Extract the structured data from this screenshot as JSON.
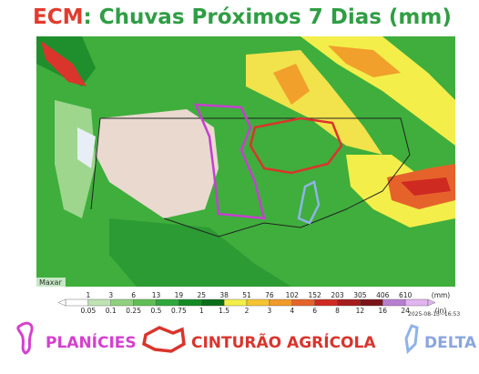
{
  "title": {
    "prefix": "ECM",
    "rest": ": Chuvas Próximos 7 Dias (mm)"
  },
  "map": {
    "credit": "Maxar",
    "timestamp": "2025-08-13~16:53"
  },
  "colorbar": {
    "colors": [
      "#ffffff",
      "#bfe3b5",
      "#8fd17f",
      "#5fbf55",
      "#2ea83a",
      "#138a24",
      "#0a6e1a",
      "#f4ee4a",
      "#f5c431",
      "#f09a2a",
      "#e5632a",
      "#cf2a22",
      "#a71d1d",
      "#7a1418",
      "#b77fd0",
      "#e2b4f0"
    ],
    "mm": [
      1,
      3,
      6,
      13,
      19,
      25,
      38,
      51,
      76,
      102,
      152,
      203,
      305,
      406,
      610
    ],
    "mm_unit": "(mm)",
    "inches": [
      0.05,
      0.1,
      0.25,
      0.5,
      0.75,
      1,
      1.5,
      2,
      3,
      4,
      6,
      8,
      12,
      16,
      24
    ],
    "in_unit": "(in)"
  },
  "legend": [
    "PLANÍCIES",
    "CINTURÃO AGRÍCOLA",
    "DELTA"
  ]
}
